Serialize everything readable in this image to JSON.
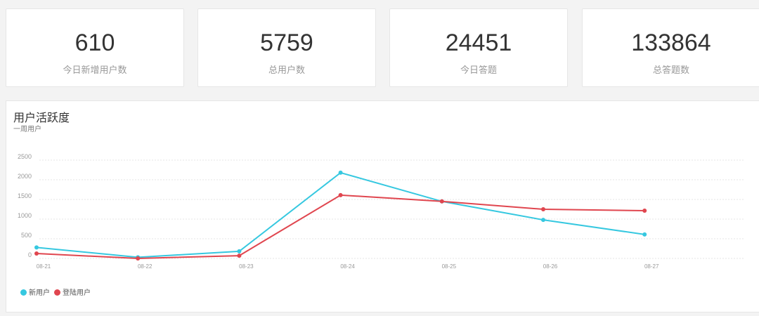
{
  "stats": [
    {
      "value": "610",
      "label": "今日新增用户数"
    },
    {
      "value": "5759",
      "label": "总用户数"
    },
    {
      "value": "24451",
      "label": "今日答题"
    },
    {
      "value": "133864",
      "label": "总答题数"
    }
  ],
  "chart_data": {
    "type": "line",
    "title": "用户活跃度",
    "subtitle": "一周用户",
    "categories": [
      "08-21",
      "08-22",
      "08-23",
      "08-24",
      "08-25",
      "08-26",
      "08-27"
    ],
    "yticks": [
      "0",
      "500",
      "1000",
      "1500",
      "2000",
      "2500"
    ],
    "ylim": [
      0,
      2500
    ],
    "series": [
      {
        "name": "新用户",
        "color": "#36c8e0",
        "values": [
          280,
          30,
          180,
          2180,
          1450,
          980,
          610
        ]
      },
      {
        "name": "登陆用户",
        "color": "#e0464f",
        "values": [
          125,
          0,
          70,
          1610,
          1450,
          1250,
          1215
        ]
      }
    ],
    "legend": "bottom-left",
    "grid": true
  }
}
